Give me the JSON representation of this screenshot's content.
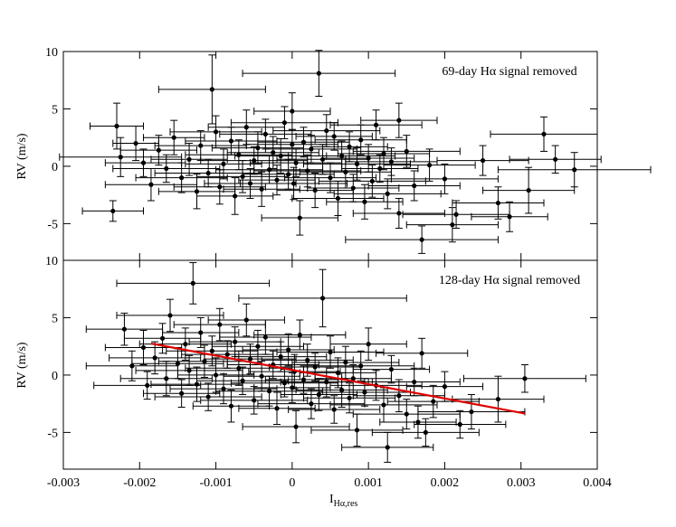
{
  "chart_data": [
    {
      "type": "scatter",
      "annotation": "69-day Hα signal removed",
      "xlabel": "",
      "ylabel": "RV (m/s)",
      "xlim": [
        -0.003,
        0.004
      ],
      "ylim": [
        -8.2,
        10
      ],
      "x_ticks": [
        -0.003,
        -0.002,
        -0.001,
        0,
        0.001,
        0.002,
        0.003,
        0.004
      ],
      "y_ticks": [
        "10",
        "5",
        "0",
        "-5"
      ],
      "y_tick_values": [
        10,
        5,
        0,
        -5
      ],
      "points": [
        [
          -0.0023,
          3.5,
          0.00035,
          2.0
        ],
        [
          -0.00205,
          2.0,
          0.0003,
          1.5
        ],
        [
          -0.00235,
          -3.9,
          0.0004,
          0.9
        ],
        [
          -0.00225,
          0.8,
          0.0008,
          1.7
        ],
        [
          -0.00195,
          0.3,
          0.0005,
          1.2
        ],
        [
          -0.00185,
          -1.6,
          0.0006,
          1.4
        ],
        [
          -0.00175,
          1.4,
          0.0005,
          1.3
        ],
        [
          -0.00165,
          -0.2,
          0.0007,
          1.2
        ],
        [
          -0.00155,
          2.5,
          0.0004,
          1.5
        ],
        [
          -0.00145,
          -1.0,
          0.0006,
          1.3
        ],
        [
          -0.00135,
          0.6,
          0.0005,
          1.4
        ],
        [
          -0.00125,
          -2.2,
          0.0005,
          1.5
        ],
        [
          -0.0012,
          1.8,
          0.0006,
          1.3
        ],
        [
          -0.0011,
          -0.6,
          0.0007,
          1.2
        ],
        [
          -0.00105,
          6.7,
          0.0007,
          3.0
        ],
        [
          -0.001,
          3.0,
          0.0006,
          1.4
        ],
        [
          -0.00095,
          -1.8,
          0.0006,
          1.5
        ],
        [
          -0.0009,
          0.2,
          0.0005,
          1.3
        ],
        [
          -0.0008,
          2.2,
          0.0006,
          1.2
        ],
        [
          -0.00075,
          -2.6,
          0.0005,
          1.6
        ],
        [
          -0.0007,
          1.0,
          0.0007,
          1.3
        ],
        [
          -0.00065,
          -0.9,
          0.0006,
          1.4
        ],
        [
          -0.0006,
          3.4,
          0.0005,
          1.5
        ],
        [
          -0.00055,
          -1.5,
          0.0006,
          1.3
        ],
        [
          -0.0005,
          0.5,
          0.0007,
          1.2
        ],
        [
          -0.00045,
          1.6,
          0.0006,
          1.4
        ],
        [
          -0.0004,
          -2.0,
          0.0005,
          1.5
        ],
        [
          -0.00035,
          2.8,
          0.0006,
          1.3
        ],
        [
          -0.0003,
          -0.3,
          0.0007,
          1.2
        ],
        [
          -0.00025,
          1.2,
          0.0006,
          1.4
        ],
        [
          -0.0002,
          -1.2,
          0.0005,
          1.3
        ],
        [
          -0.00015,
          0.9,
          0.0006,
          1.5
        ],
        [
          -0.0001,
          3.8,
          0.0007,
          1.4
        ],
        [
          -5e-05,
          -0.7,
          0.0006,
          1.3
        ],
        [
          0.0,
          4.8,
          0.0005,
          1.6
        ],
        [
          0.0,
          1.9,
          0.0006,
          1.3
        ],
        [
          2e-05,
          -1.5,
          0.0007,
          1.4
        ],
        [
          5e-05,
          0.3,
          0.0006,
          1.2
        ],
        [
          0.0001,
          -4.5,
          0.0005,
          1.5
        ],
        [
          0.00015,
          2.1,
          0.0006,
          1.3
        ],
        [
          0.0002,
          -0.4,
          0.0007,
          1.4
        ],
        [
          0.00025,
          1.5,
          0.0006,
          1.2
        ],
        [
          0.0003,
          -2.1,
          0.0005,
          1.5
        ],
        [
          0.00035,
          8.1,
          0.001,
          2.0
        ],
        [
          0.0004,
          0.6,
          0.0006,
          1.3
        ],
        [
          0.00045,
          3.1,
          0.0007,
          1.4
        ],
        [
          0.0005,
          -1.0,
          0.0006,
          1.3
        ],
        [
          0.00055,
          2.6,
          0.0005,
          1.2
        ],
        [
          0.0006,
          -2.8,
          0.0006,
          1.5
        ],
        [
          0.00065,
          0.9,
          0.0007,
          1.3
        ],
        [
          0.0007,
          -0.5,
          0.0006,
          1.4
        ],
        [
          0.00075,
          1.7,
          0.0005,
          1.3
        ],
        [
          0.0008,
          -1.9,
          0.0006,
          1.2
        ],
        [
          0.00085,
          0.2,
          0.0007,
          1.4
        ],
        [
          0.0009,
          2.3,
          0.0006,
          1.3
        ],
        [
          0.00095,
          -3.1,
          0.0005,
          1.5
        ],
        [
          0.001,
          0.7,
          0.0006,
          1.2
        ],
        [
          0.00105,
          -1.3,
          0.0007,
          1.4
        ],
        [
          0.0011,
          3.6,
          0.0006,
          1.3
        ],
        [
          0.00115,
          -0.2,
          0.0005,
          1.2
        ],
        [
          0.0012,
          1.1,
          0.0006,
          1.4
        ],
        [
          0.00125,
          -2.4,
          0.0007,
          1.3
        ],
        [
          0.0013,
          0.4,
          0.0006,
          1.2
        ],
        [
          0.0014,
          4.0,
          0.0005,
          1.5
        ],
        [
          0.0014,
          -4.1,
          0.0006,
          1.3
        ],
        [
          0.0015,
          1.3,
          0.0007,
          1.4
        ],
        [
          0.0016,
          -1.7,
          0.0006,
          1.3
        ],
        [
          0.0017,
          -6.4,
          0.001,
          1.2
        ],
        [
          0.0018,
          0.1,
          0.0006,
          1.4
        ],
        [
          0.002,
          -1.1,
          0.0007,
          1.3
        ],
        [
          0.0021,
          -5.1,
          0.0006,
          1.5
        ],
        [
          0.00215,
          -4.2,
          0.0007,
          1.2
        ],
        [
          0.0025,
          0.5,
          0.0006,
          1.3
        ],
        [
          0.0027,
          -3.2,
          0.0006,
          1.4
        ],
        [
          0.00285,
          -4.4,
          0.0005,
          1.3
        ],
        [
          0.0031,
          -2.1,
          0.0006,
          2.0
        ],
        [
          0.0033,
          2.8,
          0.0007,
          1.5
        ],
        [
          0.00345,
          0.6,
          0.0006,
          1.2
        ],
        [
          0.0037,
          -0.3,
          0.001,
          1.5
        ]
      ]
    },
    {
      "type": "scatter",
      "annotation": "128-day Hα signal removed",
      "xlabel": "I",
      "xlabel_sub": "Hα,res",
      "ylabel": "RV (m/s)",
      "xlim": [
        -0.003,
        0.004
      ],
      "ylim": [
        -8.2,
        10
      ],
      "x_ticks": [
        -0.003,
        -0.002,
        -0.001,
        0,
        0.001,
        0.002,
        0.003,
        0.004
      ],
      "x_tick_labels": [
        "-0.003",
        "-0.002",
        "-0.001",
        "0",
        "0.001",
        "0.002",
        "0.003",
        "0.004"
      ],
      "y_ticks": [
        "10",
        "5",
        "0",
        "-5"
      ],
      "y_tick_values": [
        10,
        5,
        0,
        -5
      ],
      "fit_line": {
        "x": [
          -0.00185,
          0.00305
        ],
        "y": [
          2.75,
          -3.35
        ],
        "color": "#e00000"
      },
      "points": [
        [
          -0.0022,
          4.0,
          0.0005,
          1.4
        ],
        [
          -0.0021,
          0.8,
          0.0006,
          1.3
        ],
        [
          -0.00195,
          2.4,
          0.0005,
          1.5
        ],
        [
          -0.0019,
          -0.9,
          0.0007,
          1.2
        ],
        [
          -0.0018,
          1.5,
          0.0006,
          1.4
        ],
        [
          -0.0017,
          3.2,
          0.0005,
          1.3
        ],
        [
          -0.00165,
          -0.3,
          0.0006,
          1.5
        ],
        [
          -0.0016,
          5.2,
          0.0007,
          1.4
        ],
        [
          -0.0015,
          1.0,
          0.0006,
          1.3
        ],
        [
          -0.00145,
          -1.6,
          0.0005,
          1.2
        ],
        [
          -0.0014,
          2.7,
          0.0006,
          1.4
        ],
        [
          -0.00135,
          0.4,
          0.0007,
          1.3
        ],
        [
          -0.0013,
          8.0,
          0.001,
          1.8
        ],
        [
          -0.00125,
          -0.8,
          0.0006,
          1.5
        ],
        [
          -0.0012,
          3.7,
          0.0005,
          1.3
        ],
        [
          -0.00115,
          1.2,
          0.0006,
          1.4
        ],
        [
          -0.0011,
          -1.9,
          0.0007,
          1.2
        ],
        [
          -0.00105,
          2.1,
          0.0006,
          1.3
        ],
        [
          -0.001,
          0.0,
          0.0005,
          1.5
        ],
        [
          -0.00095,
          4.4,
          0.0006,
          1.4
        ],
        [
          -0.0009,
          -1.2,
          0.0007,
          1.3
        ],
        [
          -0.00085,
          1.8,
          0.0006,
          1.2
        ],
        [
          -0.0008,
          -2.7,
          0.0005,
          1.4
        ],
        [
          -0.00075,
          2.9,
          0.0006,
          1.3
        ],
        [
          -0.0007,
          0.6,
          0.0007,
          1.5
        ],
        [
          -0.00065,
          -0.5,
          0.0006,
          1.2
        ],
        [
          -0.0006,
          4.8,
          0.0005,
          1.4
        ],
        [
          -0.00055,
          1.4,
          0.0006,
          1.3
        ],
        [
          -0.0005,
          -2.2,
          0.0007,
          1.2
        ],
        [
          -0.00045,
          2.5,
          0.0006,
          1.4
        ],
        [
          -0.0004,
          -0.1,
          0.0005,
          1.3
        ],
        [
          -0.00035,
          3.3,
          0.0006,
          1.5
        ],
        [
          -0.0003,
          -1.4,
          0.0007,
          1.3
        ],
        [
          -0.00025,
          0.9,
          0.0006,
          1.2
        ],
        [
          -0.0002,
          -2.9,
          0.0005,
          1.4
        ],
        [
          -0.00015,
          1.6,
          0.0006,
          1.3
        ],
        [
          -0.0001,
          -0.7,
          0.0007,
          1.2
        ],
        [
          -5e-05,
          2.2,
          0.0006,
          1.4
        ],
        [
          0.0,
          -1.1,
          0.0005,
          1.3
        ],
        [
          3e-05,
          0.3,
          0.0006,
          1.5
        ],
        [
          5e-05,
          -4.5,
          0.0007,
          1.4
        ],
        [
          0.0001,
          3.5,
          0.0006,
          1.3
        ],
        [
          0.00015,
          -0.4,
          0.0005,
          1.2
        ],
        [
          0.0002,
          1.3,
          0.0006,
          1.4
        ],
        [
          0.00025,
          -2.5,
          0.0007,
          1.3
        ],
        [
          0.0003,
          0.7,
          0.0006,
          1.2
        ],
        [
          0.00035,
          -1.7,
          0.0005,
          1.4
        ],
        [
          0.0004,
          6.7,
          0.0011,
          2.5
        ],
        [
          0.00045,
          -0.6,
          0.0006,
          1.3
        ],
        [
          0.0005,
          2.0,
          0.0007,
          1.4
        ],
        [
          0.00055,
          -3.0,
          0.0006,
          1.2
        ],
        [
          0.0006,
          0.2,
          0.0005,
          1.3
        ],
        [
          0.00065,
          -1.3,
          0.0006,
          1.5
        ],
        [
          0.0007,
          1.1,
          0.0007,
          1.4
        ],
        [
          0.00075,
          -2.0,
          0.0006,
          1.3
        ],
        [
          0.0008,
          -0.3,
          0.0005,
          1.2
        ],
        [
          0.00085,
          -4.8,
          0.0006,
          1.4
        ],
        [
          0.0009,
          0.8,
          0.0007,
          1.3
        ],
        [
          0.00095,
          -1.5,
          0.0006,
          1.2
        ],
        [
          0.001,
          2.7,
          0.0005,
          1.4
        ],
        [
          0.0011,
          -0.9,
          0.0006,
          1.3
        ],
        [
          0.0012,
          -2.6,
          0.0007,
          1.5
        ],
        [
          0.00125,
          -6.3,
          0.0006,
          1.3
        ],
        [
          0.0013,
          0.5,
          0.0005,
          1.2
        ],
        [
          0.0014,
          -1.8,
          0.0006,
          1.4
        ],
        [
          0.0015,
          -3.4,
          0.0007,
          1.3
        ],
        [
          0.0016,
          -0.6,
          0.0006,
          1.2
        ],
        [
          0.00165,
          -4.1,
          0.0005,
          1.4
        ],
        [
          0.0017,
          1.9,
          0.0006,
          1.3
        ],
        [
          0.00175,
          -5.0,
          0.0007,
          1.2
        ],
        [
          0.00185,
          -2.3,
          0.0006,
          1.4
        ],
        [
          0.002,
          -1.0,
          0.0005,
          1.3
        ],
        [
          0.0022,
          -4.3,
          0.0006,
          1.2
        ],
        [
          0.00235,
          -3.2,
          0.0007,
          1.5
        ],
        [
          0.0027,
          -2.1,
          0.0006,
          2.0
        ],
        [
          0.00305,
          -0.3,
          0.0008,
          1.2
        ]
      ]
    }
  ]
}
